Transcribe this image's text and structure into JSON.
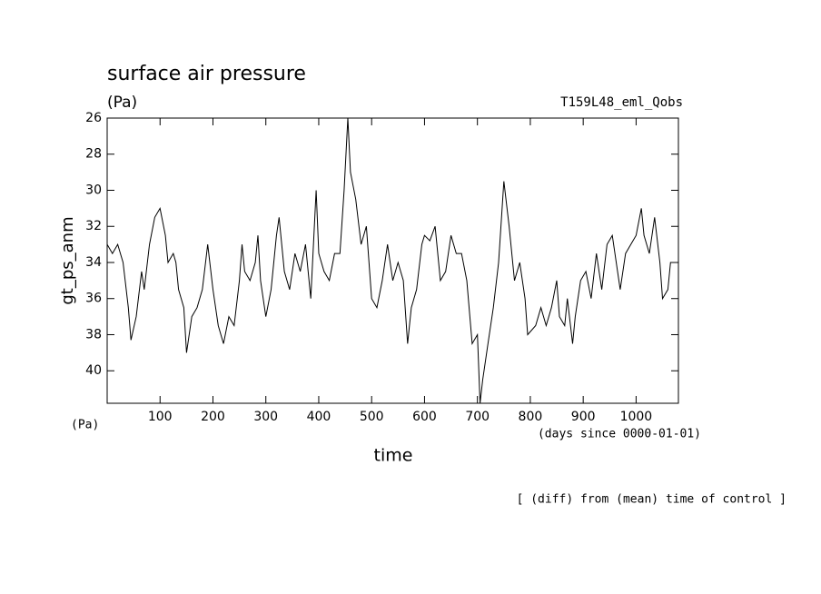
{
  "chart_data": {
    "type": "line",
    "title": "surface air pressure",
    "subtitle": "(Pa)",
    "annotation": "T159L48_eml_Qobs",
    "ylabel": "gt_ps_anm",
    "yunit": "(Pa)",
    "xlabel": "time",
    "xunit": "(days since 0000-01-01)",
    "footnote": "[ (diff) from (mean) time of control ]",
    "xlim": [
      0,
      1080
    ],
    "ylim": [
      26,
      41.8
    ],
    "y_inverted": true,
    "xticks": [
      100,
      200,
      300,
      400,
      500,
      600,
      700,
      800,
      900,
      1000
    ],
    "yticks": [
      26,
      28,
      30,
      32,
      34,
      36,
      38,
      40
    ],
    "series": [
      {
        "color": "#000000",
        "x": [
          0,
          10,
          20,
          30,
          40,
          45,
          55,
          65,
          70,
          80,
          90,
          100,
          110,
          115,
          125,
          130,
          135,
          145,
          150,
          160,
          170,
          180,
          190,
          200,
          210,
          220,
          230,
          240,
          250,
          255,
          260,
          270,
          280,
          285,
          290,
          300,
          310,
          320,
          325,
          335,
          345,
          355,
          365,
          375,
          385,
          395,
          400,
          410,
          420,
          430,
          440,
          448,
          455,
          460,
          470,
          480,
          490,
          500,
          510,
          520,
          530,
          540,
          550,
          560,
          568,
          575,
          585,
          595,
          600,
          610,
          620,
          630,
          640,
          650,
          660,
          670,
          680,
          690,
          700,
          705,
          710,
          720,
          730,
          740,
          750,
          760,
          770,
          780,
          790,
          795,
          810,
          820,
          830,
          840,
          850,
          855,
          865,
          870,
          880,
          885,
          895,
          905,
          915,
          925,
          935,
          945,
          955,
          965,
          970,
          980,
          990,
          1000,
          1010,
          1015,
          1025,
          1035,
          1045,
          1050,
          1060,
          1065,
          1075
        ],
        "values": [
          33,
          33.5,
          33,
          34,
          36.5,
          38.3,
          37,
          34.5,
          35.5,
          33,
          31.5,
          31,
          32.5,
          34,
          33.5,
          34,
          35.5,
          36.5,
          39,
          37,
          36.5,
          35.5,
          33,
          35.5,
          37.5,
          38.5,
          37,
          37.5,
          35,
          33,
          34.5,
          35,
          34,
          32.5,
          35,
          37,
          35.5,
          32.5,
          31.5,
          34.5,
          35.5,
          33.5,
          34.5,
          33,
          36,
          30,
          33.5,
          34.5,
          35,
          33.5,
          33.5,
          30,
          26,
          29,
          30.5,
          33,
          32,
          36,
          36.5,
          35,
          33,
          35,
          34,
          35,
          38.5,
          36.5,
          35.5,
          33,
          32.5,
          32.8,
          32,
          35,
          34.5,
          32.5,
          33.5,
          33.5,
          35,
          38.5,
          38,
          41.8,
          40.5,
          38.5,
          36.5,
          34,
          29.5,
          32,
          35,
          34,
          36,
          38,
          37.5,
          36.5,
          37.5,
          36.5,
          35,
          37,
          37.5,
          36,
          38.5,
          37,
          35,
          34.5,
          36,
          33.5,
          35.5,
          33,
          32.5,
          34.5,
          35.5,
          33.5,
          33,
          32.5,
          31,
          32.5,
          33.5,
          31.5,
          34,
          36,
          35.5,
          34,
          34
        ]
      }
    ]
  }
}
